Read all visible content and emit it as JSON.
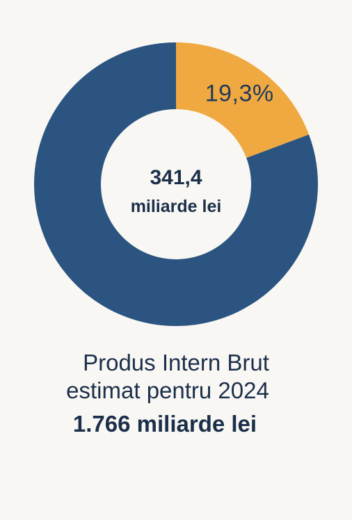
{
  "chart_data": {
    "type": "pie",
    "style": "donut",
    "center_value": "341,4",
    "center_unit": "miliarde lei",
    "slices": [
      {
        "label": "19,3%",
        "value": 19.3,
        "color": "#f0a940",
        "labeled": true
      },
      {
        "label": "",
        "value": 80.7,
        "color": "#2b5580",
        "labeled": false
      }
    ],
    "start_angle_deg": 0,
    "direction": "clockwise"
  },
  "caption": {
    "line1": "Produs Intern Brut",
    "line2": "estimat pentru 2024",
    "total": "1.766 miliarde lei"
  }
}
